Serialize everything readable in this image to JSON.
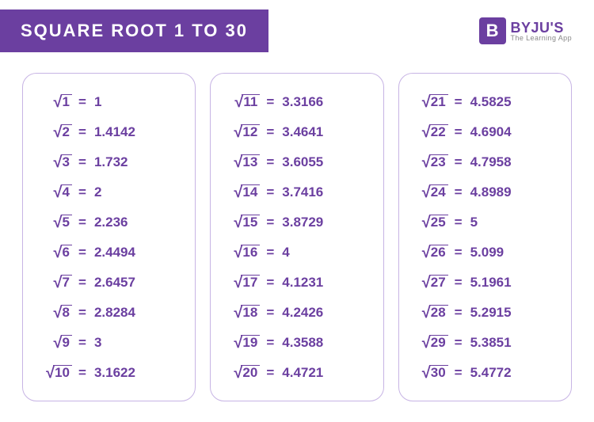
{
  "colors": {
    "accent": "#6b3fa0",
    "card_border": "#c7b4e4",
    "background": "#ffffff",
    "logo_sub": "#888888"
  },
  "header": {
    "title": "SQUARE ROOT 1 TO 30",
    "logo_letter": "B",
    "logo_main": "BYJU'S",
    "logo_sub": "The Learning App"
  },
  "columns": [
    [
      {
        "n": "1",
        "v": "1"
      },
      {
        "n": "2",
        "v": "1.4142"
      },
      {
        "n": "3",
        "v": "1.732"
      },
      {
        "n": "4",
        "v": "2"
      },
      {
        "n": "5",
        "v": "2.236"
      },
      {
        "n": "6",
        "v": "2.4494"
      },
      {
        "n": "7",
        "v": "2.6457"
      },
      {
        "n": "8",
        "v": "2.8284"
      },
      {
        "n": "9",
        "v": "3"
      },
      {
        "n": "10",
        "v": "3.1622"
      }
    ],
    [
      {
        "n": "11",
        "v": "3.3166"
      },
      {
        "n": "12",
        "v": "3.4641"
      },
      {
        "n": "13",
        "v": "3.6055"
      },
      {
        "n": "14",
        "v": "3.7416"
      },
      {
        "n": "15",
        "v": "3.8729"
      },
      {
        "n": "16",
        "v": "4"
      },
      {
        "n": "17",
        "v": "4.1231"
      },
      {
        "n": "18",
        "v": "4.2426"
      },
      {
        "n": "19",
        "v": "4.3588"
      },
      {
        "n": "20",
        "v": "4.4721"
      }
    ],
    [
      {
        "n": "21",
        "v": "4.5825"
      },
      {
        "n": "22",
        "v": "4.6904"
      },
      {
        "n": "23",
        "v": "4.7958"
      },
      {
        "n": "24",
        "v": "4.8989"
      },
      {
        "n": "25",
        "v": "5"
      },
      {
        "n": "26",
        "v": "5.099"
      },
      {
        "n": "27",
        "v": "5.1961"
      },
      {
        "n": "28",
        "v": "5.2915"
      },
      {
        "n": "29",
        "v": "5.3851"
      },
      {
        "n": "30",
        "v": "5.4772"
      }
    ]
  ]
}
